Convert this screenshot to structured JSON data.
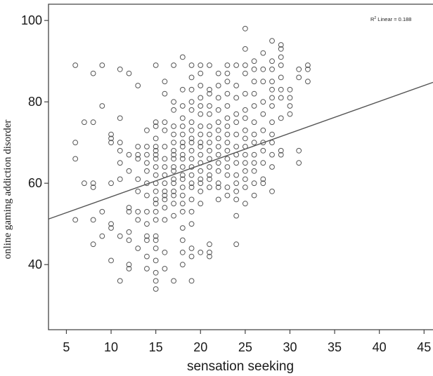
{
  "chart_data": {
    "type": "scatter",
    "title": "",
    "xlabel": "sensation seeking",
    "ylabel": "online gaming addiction disorder",
    "xlim": [
      3,
      46
    ],
    "ylim": [
      24,
      104
    ],
    "xticks": [
      5,
      10,
      15,
      20,
      25,
      30,
      35,
      40,
      45
    ],
    "yticks": [
      40,
      60,
      80,
      100
    ],
    "grid": false,
    "annotation": {
      "prefix": "R",
      "superscript": "2",
      "text": " Linear = 0.188"
    },
    "fit_line": {
      "x": [
        3,
        46
      ],
      "y": [
        51.2,
        84.8
      ]
    },
    "colors": {
      "marker": "#555555",
      "fit_line": "#555555",
      "axis": "#444444"
    },
    "points": [
      [
        6,
        89
      ],
      [
        6,
        70
      ],
      [
        6,
        66
      ],
      [
        6,
        51
      ],
      [
        7,
        75
      ],
      [
        7,
        60
      ],
      [
        8,
        87
      ],
      [
        8,
        75
      ],
      [
        8,
        60
      ],
      [
        8,
        59
      ],
      [
        8,
        51
      ],
      [
        8,
        45
      ],
      [
        9,
        89
      ],
      [
        9,
        79
      ],
      [
        9,
        53
      ],
      [
        9,
        47
      ],
      [
        10,
        72
      ],
      [
        10,
        71
      ],
      [
        10,
        70
      ],
      [
        10,
        60
      ],
      [
        10,
        50
      ],
      [
        10,
        49
      ],
      [
        10,
        41
      ],
      [
        11,
        88
      ],
      [
        11,
        76
      ],
      [
        11,
        70
      ],
      [
        11,
        68
      ],
      [
        11,
        65
      ],
      [
        11,
        61
      ],
      [
        11,
        47
      ],
      [
        11,
        36
      ],
      [
        12,
        87
      ],
      [
        12,
        67
      ],
      [
        12,
        63
      ],
      [
        12,
        54
      ],
      [
        12,
        53
      ],
      [
        12,
        48
      ],
      [
        12,
        46
      ],
      [
        12,
        40
      ],
      [
        12,
        39
      ],
      [
        13,
        84
      ],
      [
        13,
        69
      ],
      [
        13,
        67
      ],
      [
        13,
        66
      ],
      [
        13,
        61
      ],
      [
        13,
        58
      ],
      [
        13,
        53
      ],
      [
        13,
        51
      ],
      [
        13,
        44
      ],
      [
        14,
        73
      ],
      [
        14,
        69
      ],
      [
        14,
        67
      ],
      [
        14,
        65
      ],
      [
        14,
        63
      ],
      [
        14,
        60
      ],
      [
        14,
        57
      ],
      [
        14,
        53
      ],
      [
        14,
        50
      ],
      [
        14,
        47
      ],
      [
        14,
        46
      ],
      [
        14,
        42
      ],
      [
        14,
        39
      ],
      [
        15,
        89
      ],
      [
        15,
        75
      ],
      [
        15,
        74
      ],
      [
        15,
        71
      ],
      [
        15,
        69
      ],
      [
        15,
        68
      ],
      [
        15,
        67
      ],
      [
        15,
        66
      ],
      [
        15,
        64
      ],
      [
        15,
        62
      ],
      [
        15,
        60
      ],
      [
        15,
        58
      ],
      [
        15,
        56
      ],
      [
        15,
        55
      ],
      [
        15,
        53
      ],
      [
        15,
        51
      ],
      [
        15,
        47
      ],
      [
        15,
        46
      ],
      [
        15,
        44
      ],
      [
        15,
        41
      ],
      [
        15,
        38
      ],
      [
        15,
        36
      ],
      [
        15,
        34
      ],
      [
        16,
        85
      ],
      [
        16,
        82
      ],
      [
        16,
        75
      ],
      [
        16,
        73
      ],
      [
        16,
        69
      ],
      [
        16,
        66
      ],
      [
        16,
        64
      ],
      [
        16,
        62
      ],
      [
        16,
        60
      ],
      [
        16,
        58
      ],
      [
        16,
        57
      ],
      [
        16,
        56
      ],
      [
        16,
        54
      ],
      [
        16,
        51
      ],
      [
        16,
        43
      ],
      [
        16,
        39
      ],
      [
        17,
        89
      ],
      [
        17,
        80
      ],
      [
        17,
        78
      ],
      [
        17,
        74
      ],
      [
        17,
        72
      ],
      [
        17,
        70
      ],
      [
        17,
        68
      ],
      [
        17,
        67
      ],
      [
        17,
        66
      ],
      [
        17,
        64
      ],
      [
        17,
        63
      ],
      [
        17,
        61
      ],
      [
        17,
        60
      ],
      [
        17,
        58
      ],
      [
        17,
        57
      ],
      [
        17,
        55
      ],
      [
        17,
        52
      ],
      [
        17,
        36
      ],
      [
        18,
        91
      ],
      [
        18,
        83
      ],
      [
        18,
        79
      ],
      [
        18,
        76
      ],
      [
        18,
        74
      ],
      [
        18,
        72
      ],
      [
        18,
        70
      ],
      [
        18,
        69
      ],
      [
        18,
        67
      ],
      [
        18,
        66
      ],
      [
        18,
        64
      ],
      [
        18,
        62
      ],
      [
        18,
        61
      ],
      [
        18,
        59
      ],
      [
        18,
        57
      ],
      [
        18,
        55
      ],
      [
        18,
        53
      ],
      [
        18,
        49
      ],
      [
        18,
        46
      ],
      [
        18,
        43
      ],
      [
        18,
        40
      ],
      [
        19,
        89
      ],
      [
        19,
        86
      ],
      [
        19,
        83
      ],
      [
        19,
        80
      ],
      [
        19,
        78
      ],
      [
        19,
        75
      ],
      [
        19,
        73
      ],
      [
        19,
        71
      ],
      [
        19,
        70
      ],
      [
        19,
        68
      ],
      [
        19,
        66
      ],
      [
        19,
        64
      ],
      [
        19,
        62
      ],
      [
        19,
        60
      ],
      [
        19,
        59
      ],
      [
        19,
        56
      ],
      [
        19,
        53
      ],
      [
        19,
        50
      ],
      [
        19,
        44
      ],
      [
        19,
        42
      ],
      [
        19,
        36
      ],
      [
        20,
        89
      ],
      [
        20,
        87
      ],
      [
        20,
        84
      ],
      [
        20,
        81
      ],
      [
        20,
        79
      ],
      [
        20,
        77
      ],
      [
        20,
        74
      ],
      [
        20,
        72
      ],
      [
        20,
        70
      ],
      [
        20,
        69
      ],
      [
        20,
        67
      ],
      [
        20,
        65
      ],
      [
        20,
        63
      ],
      [
        20,
        61
      ],
      [
        20,
        60
      ],
      [
        20,
        58
      ],
      [
        20,
        55
      ],
      [
        20,
        43
      ],
      [
        21,
        89
      ],
      [
        21,
        83
      ],
      [
        21,
        82
      ],
      [
        21,
        79
      ],
      [
        21,
        77
      ],
      [
        21,
        74
      ],
      [
        21,
        72
      ],
      [
        21,
        70
      ],
      [
        21,
        68
      ],
      [
        21,
        66
      ],
      [
        21,
        64
      ],
      [
        21,
        62
      ],
      [
        21,
        61
      ],
      [
        21,
        59
      ],
      [
        21,
        45
      ],
      [
        21,
        43
      ],
      [
        21,
        42
      ],
      [
        22,
        87
      ],
      [
        22,
        84
      ],
      [
        22,
        81
      ],
      [
        22,
        78
      ],
      [
        22,
        75
      ],
      [
        22,
        73
      ],
      [
        22,
        71
      ],
      [
        22,
        69
      ],
      [
        22,
        67
      ],
      [
        22,
        65
      ],
      [
        22,
        63
      ],
      [
        22,
        60
      ],
      [
        22,
        59
      ],
      [
        22,
        56
      ],
      [
        23,
        89
      ],
      [
        23,
        87
      ],
      [
        23,
        85
      ],
      [
        23,
        82
      ],
      [
        23,
        79
      ],
      [
        23,
        76
      ],
      [
        23,
        74
      ],
      [
        23,
        72
      ],
      [
        23,
        70
      ],
      [
        23,
        68
      ],
      [
        23,
        66
      ],
      [
        23,
        64
      ],
      [
        23,
        62
      ],
      [
        23,
        59
      ],
      [
        23,
        57
      ],
      [
        24,
        89
      ],
      [
        24,
        84
      ],
      [
        24,
        81
      ],
      [
        24,
        77
      ],
      [
        24,
        75
      ],
      [
        24,
        72
      ],
      [
        24,
        69
      ],
      [
        24,
        67
      ],
      [
        24,
        65
      ],
      [
        24,
        62
      ],
      [
        24,
        60
      ],
      [
        24,
        58
      ],
      [
        24,
        56
      ],
      [
        24,
        52
      ],
      [
        24,
        45
      ],
      [
        25,
        98
      ],
      [
        25,
        93
      ],
      [
        25,
        89
      ],
      [
        25,
        87
      ],
      [
        25,
        82
      ],
      [
        25,
        78
      ],
      [
        25,
        76
      ],
      [
        25,
        73
      ],
      [
        25,
        71
      ],
      [
        25,
        69
      ],
      [
        25,
        67
      ],
      [
        25,
        65
      ],
      [
        25,
        63
      ],
      [
        25,
        61
      ],
      [
        25,
        59
      ],
      [
        25,
        55
      ],
      [
        26,
        90
      ],
      [
        26,
        88
      ],
      [
        26,
        85
      ],
      [
        26,
        82
      ],
      [
        26,
        79
      ],
      [
        26,
        75
      ],
      [
        26,
        72
      ],
      [
        26,
        70
      ],
      [
        26,
        67
      ],
      [
        26,
        65
      ],
      [
        26,
        63
      ],
      [
        26,
        60
      ],
      [
        26,
        57
      ],
      [
        27,
        92
      ],
      [
        27,
        88
      ],
      [
        27,
        85
      ],
      [
        27,
        80
      ],
      [
        27,
        77
      ],
      [
        27,
        73
      ],
      [
        27,
        70
      ],
      [
        27,
        68
      ],
      [
        27,
        65
      ],
      [
        27,
        61
      ],
      [
        27,
        60
      ],
      [
        28,
        95
      ],
      [
        28,
        90
      ],
      [
        28,
        88
      ],
      [
        28,
        85
      ],
      [
        28,
        83
      ],
      [
        28,
        81
      ],
      [
        28,
        79
      ],
      [
        28,
        75
      ],
      [
        28,
        72
      ],
      [
        28,
        70
      ],
      [
        28,
        67
      ],
      [
        28,
        64
      ],
      [
        28,
        58
      ],
      [
        29,
        94
      ],
      [
        29,
        93
      ],
      [
        29,
        91
      ],
      [
        29,
        89
      ],
      [
        29,
        86
      ],
      [
        29,
        83
      ],
      [
        29,
        81
      ],
      [
        29,
        76
      ],
      [
        29,
        68
      ],
      [
        29,
        67
      ],
      [
        30,
        83
      ],
      [
        30,
        81
      ],
      [
        30,
        79
      ],
      [
        30,
        77
      ],
      [
        31,
        88
      ],
      [
        31,
        86
      ],
      [
        31,
        68
      ],
      [
        31,
        65
      ],
      [
        32,
        89
      ],
      [
        32,
        88
      ],
      [
        32,
        85
      ]
    ]
  }
}
